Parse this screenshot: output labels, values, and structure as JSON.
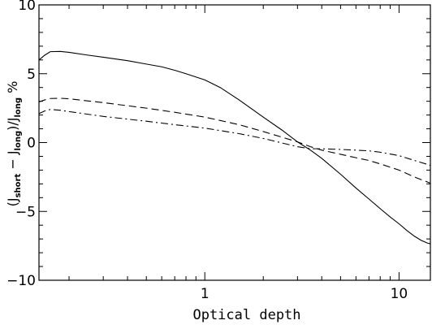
{
  "chart_data": {
    "type": "line",
    "title": "",
    "xlabel": "Optical depth",
    "ylabel": {
      "open": "(J",
      "sub1": "short",
      "minus": " − J",
      "sub2": "long",
      "div": ")/J",
      "sub3": "long",
      "pct": " %"
    },
    "xscale": "log",
    "xlim": [
      0.14,
      14.5
    ],
    "ylim": [
      -10,
      10
    ],
    "grid": false,
    "legend": "none",
    "x_ticks": [
      {
        "value": 1,
        "label": "1"
      },
      {
        "value": 10,
        "label": "10"
      }
    ],
    "y_ticks": [
      {
        "value": 10,
        "label": "10"
      },
      {
        "value": 5,
        "label": "5"
      },
      {
        "value": 0,
        "label": "0"
      },
      {
        "value": -5,
        "label": "−5"
      },
      {
        "value": -10,
        "label": "−10"
      }
    ],
    "series": [
      {
        "style": "solid",
        "points": [
          [
            0.14,
            6.0
          ],
          [
            0.15,
            6.35
          ],
          [
            0.16,
            6.6
          ],
          [
            0.18,
            6.62
          ],
          [
            0.2,
            6.55
          ],
          [
            0.25,
            6.35
          ],
          [
            0.3,
            6.2
          ],
          [
            0.4,
            5.95
          ],
          [
            0.5,
            5.7
          ],
          [
            0.6,
            5.5
          ],
          [
            0.7,
            5.25
          ],
          [
            0.8,
            5.0
          ],
          [
            1.0,
            4.55
          ],
          [
            1.2,
            4.0
          ],
          [
            1.5,
            3.1
          ],
          [
            2.0,
            1.85
          ],
          [
            2.5,
            0.9
          ],
          [
            3.0,
            0.05
          ],
          [
            3.5,
            -0.55
          ],
          [
            4.0,
            -1.15
          ],
          [
            5.0,
            -2.3
          ],
          [
            6.0,
            -3.3
          ],
          [
            7.0,
            -4.1
          ],
          [
            8.0,
            -4.8
          ],
          [
            9.0,
            -5.4
          ],
          [
            10.0,
            -5.9
          ],
          [
            11.0,
            -6.4
          ],
          [
            12.0,
            -6.8
          ],
          [
            13.0,
            -7.1
          ],
          [
            14.0,
            -7.3
          ],
          [
            14.5,
            -7.35
          ]
        ]
      },
      {
        "style": "dashed",
        "points": [
          [
            0.14,
            2.95
          ],
          [
            0.15,
            3.1
          ],
          [
            0.16,
            3.2
          ],
          [
            0.18,
            3.22
          ],
          [
            0.2,
            3.18
          ],
          [
            0.3,
            2.9
          ],
          [
            0.5,
            2.5
          ],
          [
            0.7,
            2.2
          ],
          [
            1.0,
            1.85
          ],
          [
            1.5,
            1.3
          ],
          [
            2.0,
            0.8
          ],
          [
            3.0,
            0.05
          ],
          [
            3.5,
            -0.3
          ],
          [
            4.0,
            -0.55
          ],
          [
            5.0,
            -0.85
          ],
          [
            6.0,
            -1.1
          ],
          [
            7.0,
            -1.3
          ],
          [
            8.0,
            -1.55
          ],
          [
            10.0,
            -2.0
          ],
          [
            12.0,
            -2.5
          ],
          [
            14.5,
            -2.95
          ]
        ]
      },
      {
        "style": "dashdot",
        "points": [
          [
            0.14,
            2.1
          ],
          [
            0.15,
            2.3
          ],
          [
            0.16,
            2.4
          ],
          [
            0.18,
            2.35
          ],
          [
            0.2,
            2.25
          ],
          [
            0.3,
            1.9
          ],
          [
            0.5,
            1.55
          ],
          [
            0.7,
            1.3
          ],
          [
            1.0,
            1.05
          ],
          [
            1.5,
            0.65
          ],
          [
            2.0,
            0.3
          ],
          [
            3.0,
            -0.3
          ],
          [
            3.5,
            -0.45
          ],
          [
            4.0,
            -0.45
          ],
          [
            5.0,
            -0.5
          ],
          [
            6.0,
            -0.55
          ],
          [
            7.0,
            -0.6
          ],
          [
            8.0,
            -0.7
          ],
          [
            10.0,
            -0.95
          ],
          [
            12.0,
            -1.3
          ],
          [
            14.5,
            -1.65
          ]
        ]
      }
    ]
  }
}
